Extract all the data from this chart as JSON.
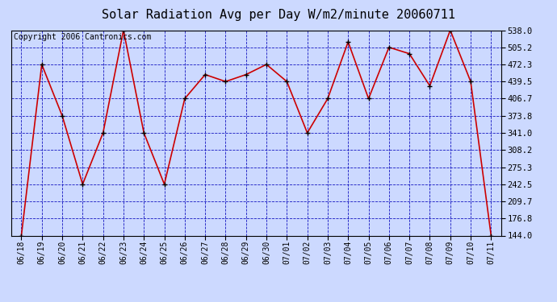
{
  "title": "Solar Radiation Avg per Day W/m2/minute 20060711",
  "copyright_text": "Copyright 2006 Cantronics.com",
  "dates": [
    "06/18",
    "06/19",
    "06/20",
    "06/21",
    "06/22",
    "06/23",
    "06/24",
    "06/25",
    "06/26",
    "06/27",
    "06/28",
    "06/29",
    "06/30",
    "07/01",
    "07/02",
    "07/03",
    "07/04",
    "07/05",
    "07/06",
    "07/07",
    "07/08",
    "07/09",
    "07/10",
    "07/11"
  ],
  "values": [
    144.0,
    472.3,
    373.8,
    242.5,
    341.0,
    538.0,
    341.0,
    242.5,
    406.7,
    452.9,
    439.5,
    452.9,
    472.3,
    439.5,
    341.0,
    406.7,
    515.6,
    406.7,
    505.2,
    492.9,
    431.3,
    538.0,
    439.5,
    144.0
  ],
  "line_color": "#cc0000",
  "marker_color": "#000000",
  "bg_color": "#ccd9ff",
  "plot_bg_color": "#ccd9ff",
  "grid_color": "#0000bb",
  "ylim": [
    144.0,
    538.0
  ],
  "yticks": [
    144.0,
    176.8,
    209.7,
    242.5,
    275.3,
    308.2,
    341.0,
    373.8,
    406.7,
    439.5,
    472.3,
    505.2,
    538.0
  ],
  "title_fontsize": 11,
  "copyright_fontsize": 7,
  "tick_fontsize": 7,
  "ytick_fontsize": 7.5
}
